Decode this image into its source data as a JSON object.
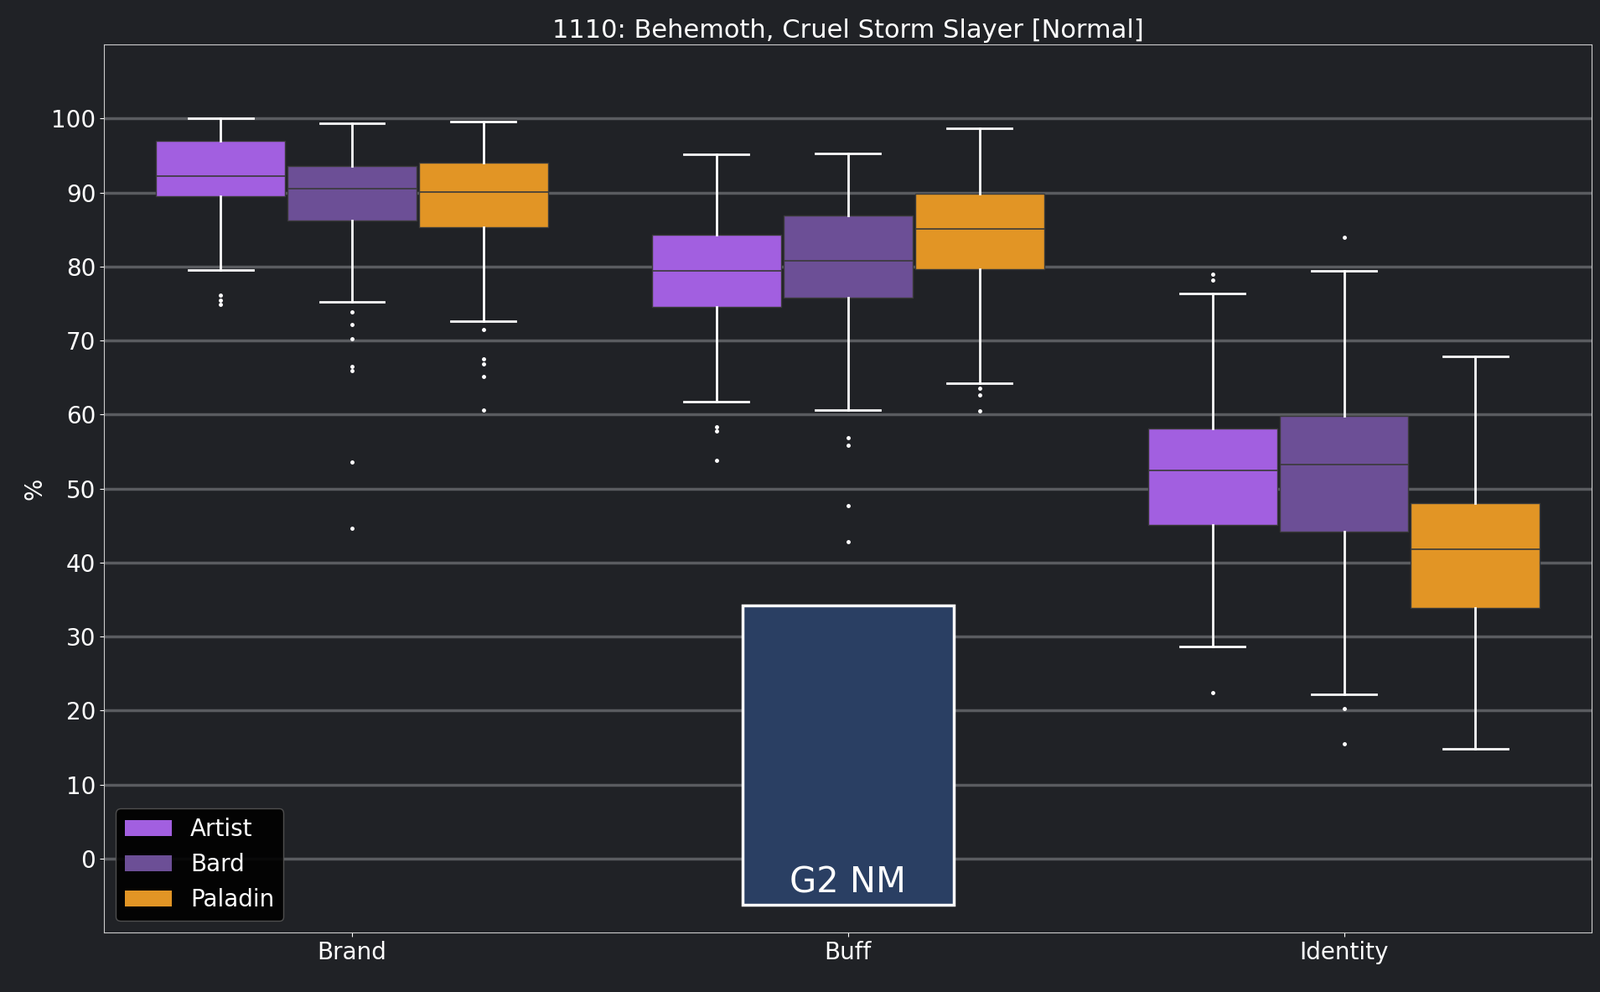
{
  "chart_data": {
    "type": "box",
    "title": "1110: Behemoth, Cruel Storm Slayer [Normal]",
    "y_label": "%",
    "categories": [
      "Brand",
      "Buff",
      "Identity"
    ],
    "series": [
      {
        "name": "Artist",
        "color": "#a25fe0",
        "boxes": [
          {
            "whislo": 79.5,
            "q1": 89.5,
            "med": 92.2,
            "q3": 97.0,
            "whishi": 100.0,
            "fliers": [
              76.1,
              75.5,
              74.9
            ]
          },
          {
            "whislo": 61.7,
            "q1": 74.5,
            "med": 79.4,
            "q3": 84.3,
            "whishi": 95.2,
            "fliers": [
              58.3,
              57.8,
              53.8
            ]
          },
          {
            "whislo": 28.6,
            "q1": 45.1,
            "med": 52.4,
            "q3": 58.1,
            "whishi": 76.4,
            "fliers": [
              79.0,
              78.2,
              22.4
            ]
          }
        ]
      },
      {
        "name": "Bard",
        "color": "#6c4f96",
        "boxes": [
          {
            "whislo": 75.2,
            "q1": 86.2,
            "med": 90.5,
            "q3": 93.6,
            "whishi": 99.4,
            "fliers": [
              73.9,
              72.2,
              70.3,
              66.5,
              65.9,
              53.6,
              44.6
            ]
          },
          {
            "whislo": 60.6,
            "q1": 75.8,
            "med": 80.8,
            "q3": 86.9,
            "whishi": 95.3,
            "fliers": [
              56.9,
              55.9,
              47.7,
              42.8
            ]
          },
          {
            "whislo": 22.2,
            "q1": 44.2,
            "med": 53.3,
            "q3": 59.8,
            "whishi": 79.4,
            "fliers": [
              84.0,
              20.3,
              15.5
            ]
          }
        ]
      },
      {
        "name": "Paladin",
        "color": "#e29525",
        "boxes": [
          {
            "whislo": 72.6,
            "q1": 85.3,
            "med": 90.1,
            "q3": 94.0,
            "whishi": 99.6,
            "fliers": [
              71.5,
              67.5,
              66.8,
              65.1,
              60.6
            ]
          },
          {
            "whislo": 64.2,
            "q1": 79.6,
            "med": 85.1,
            "q3": 89.9,
            "whishi": 98.7,
            "fliers": [
              63.6,
              62.6,
              60.5
            ]
          },
          {
            "whislo": 14.8,
            "q1": 33.9,
            "med": 41.8,
            "q3": 48.0,
            "whishi": 67.9,
            "fliers": []
          }
        ]
      }
    ],
    "annotations": [
      "G2 NM"
    ],
    "ylim": [
      -10,
      110
    ],
    "yticks": [
      0,
      10,
      20,
      30,
      40,
      50,
      60,
      70,
      80,
      90,
      100
    ],
    "grid": true,
    "legend": "lower left"
  }
}
